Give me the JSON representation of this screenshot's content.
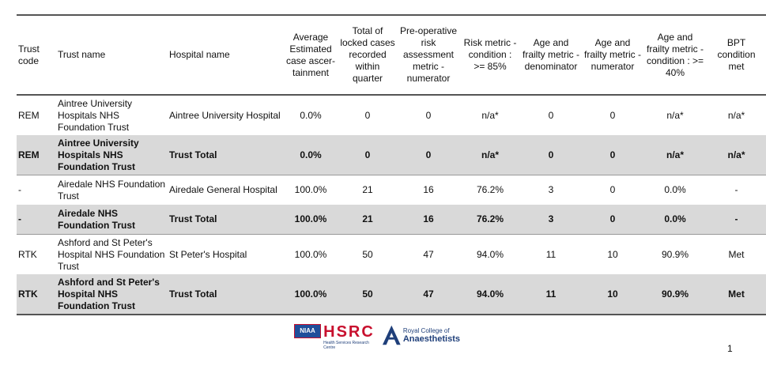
{
  "headers": {
    "trust_code": "Trust code",
    "trust_name": "Trust name",
    "hospital_name": "Hospital name",
    "avg_case_ascertainment": "Average Estimated case ascer-tainment",
    "total_locked_cases": "Total of locked cases recorded within quarter",
    "preop_risk_numerator": "Pre-operative risk assessment metric - numerator",
    "risk_condition": "Risk metric - condition : >= 85%",
    "frailty_denominator": "Age and frailty metric - denominator",
    "frailty_numerator": "Age and frailty metric - numerator",
    "frailty_condition": "Age and frailty metric - condition : >= 40%",
    "bpt_met": "BPT condition met"
  },
  "rows": [
    {
      "code": "REM",
      "trust": "Aintree University Hospitals NHS Foundation Trust",
      "hospital": "Aintree University Hospital",
      "ascertainment": "0.0%",
      "locked": "0",
      "preop": "0",
      "risk": "n/a*",
      "denom": "0",
      "numer": "0",
      "frailty": "n/a*",
      "bpt": "n/a*"
    },
    {
      "code": "REM",
      "trust": "Aintree University Hospitals NHS Foundation Trust",
      "hospital": "Trust Total",
      "ascertainment": "0.0%",
      "locked": "0",
      "preop": "0",
      "risk": "n/a*",
      "denom": "0",
      "numer": "0",
      "frailty": "n/a*",
      "bpt": "n/a*"
    },
    {
      "code": "-",
      "trust": "Airedale NHS Foundation Trust",
      "hospital": "Airedale General Hospital",
      "ascertainment": "100.0%",
      "locked": "21",
      "preop": "16",
      "risk": "76.2%",
      "denom": "3",
      "numer": "0",
      "frailty": "0.0%",
      "bpt": "-"
    },
    {
      "code": "-",
      "trust": "Airedale NHS Foundation Trust",
      "hospital": "Trust Total",
      "ascertainment": "100.0%",
      "locked": "21",
      "preop": "16",
      "risk": "76.2%",
      "denom": "3",
      "numer": "0",
      "frailty": "0.0%",
      "bpt": "-"
    },
    {
      "code": "RTK",
      "trust": "Ashford and St Peter's Hospital NHS Foundation Trust",
      "hospital": "St Peter's Hospital",
      "ascertainment": "100.0%",
      "locked": "50",
      "preop": "47",
      "risk": "94.0%",
      "denom": "11",
      "numer": "10",
      "frailty": "90.9%",
      "bpt": "Met"
    },
    {
      "code": "RTK",
      "trust": "Ashford and St Peter's Hospital NHS Foundation Trust",
      "hospital": "Trust Total",
      "ascertainment": "100.0%",
      "locked": "50",
      "preop": "47",
      "risk": "94.0%",
      "denom": "11",
      "numer": "10",
      "frailty": "90.9%",
      "bpt": "Met"
    }
  ],
  "footer": {
    "niaa": "NIAA",
    "hsrc": "HSRC",
    "hsrc_sub": "Health Services Research Centre",
    "rca_top": "Royal College of",
    "rca_bottom": "Anaesthetists",
    "page_number": "1"
  },
  "colors": {
    "total_row_bg": "#d9d9d9",
    "hsrc_red": "#c8102e",
    "niaa_blue": "#1f4e9a"
  }
}
